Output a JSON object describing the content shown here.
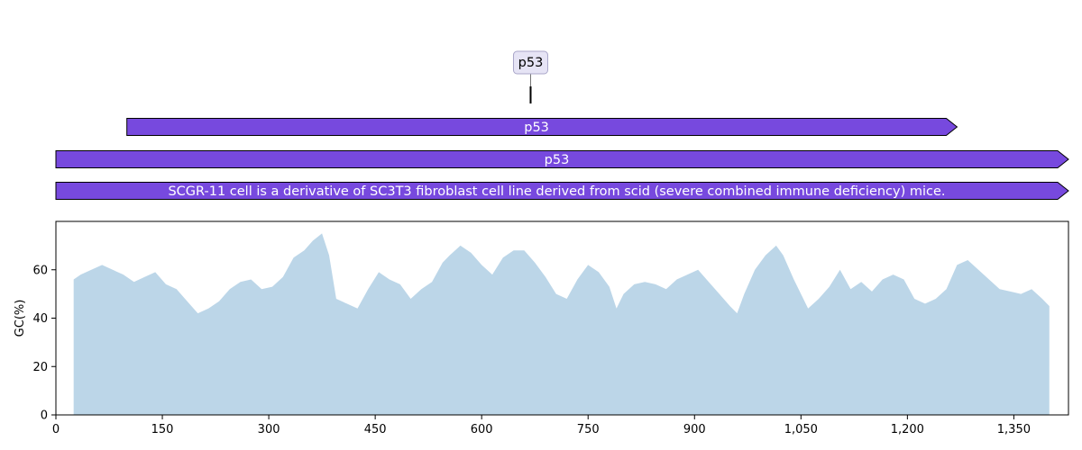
{
  "chart_data": {
    "type": "area",
    "feature_map": {
      "sequence_length": 1427,
      "features": [
        {
          "label": "p53",
          "start": 100,
          "end": 1270,
          "strand": 1,
          "color": "#7749de"
        },
        {
          "label": "p53",
          "start": 0,
          "end": 1427,
          "strand": 1,
          "color": "#7749de"
        },
        {
          "label": "SCGR-11 cell is a derivative of SC3T3 fibroblast cell line derived from scid (severe combined immune deficiency) mice.",
          "start": 0,
          "end": 1427,
          "strand": 1,
          "color": "#7749de"
        }
      ],
      "callouts": [
        {
          "label": "p53",
          "position": 669
        }
      ]
    },
    "gc_plot": {
      "ylabel": "GC(%)",
      "xlabel": "",
      "xlim": [
        0,
        1427
      ],
      "ylim": [
        0,
        80
      ],
      "fill_color": "#bcd6e8",
      "x_ticks": [
        0,
        150,
        300,
        450,
        600,
        750,
        900,
        1050,
        1200,
        1350
      ],
      "x_tick_labels": [
        "0",
        "150",
        "300",
        "450",
        "600",
        "750",
        "900",
        "1,050",
        "1,200",
        "1,350"
      ],
      "y_ticks": [
        0,
        20,
        40,
        60
      ],
      "y_tick_labels": [
        "0",
        "20",
        "40",
        "60"
      ],
      "x": [
        25,
        35,
        50,
        65,
        80,
        95,
        110,
        125,
        140,
        155,
        170,
        185,
        200,
        215,
        230,
        245,
        260,
        275,
        290,
        305,
        320,
        335,
        350,
        362,
        375,
        385,
        395,
        410,
        425,
        440,
        455,
        470,
        485,
        500,
        515,
        530,
        545,
        555,
        570,
        585,
        600,
        615,
        630,
        645,
        660,
        675,
        690,
        705,
        720,
        735,
        750,
        765,
        780,
        790,
        800,
        815,
        830,
        845,
        860,
        875,
        890,
        905,
        920,
        935,
        950,
        960,
        970,
        985,
        1000,
        1015,
        1025,
        1040,
        1050,
        1060,
        1075,
        1090,
        1105,
        1120,
        1135,
        1150,
        1165,
        1180,
        1195,
        1210,
        1225,
        1240,
        1255,
        1270,
        1285,
        1300,
        1315,
        1330,
        1345,
        1360,
        1375,
        1390,
        1400
      ],
      "y": [
        56,
        58,
        60,
        62,
        60,
        58,
        55,
        57,
        59,
        54,
        52,
        47,
        42,
        44,
        47,
        52,
        55,
        56,
        52,
        53,
        57,
        65,
        68,
        72,
        75,
        66,
        48,
        46,
        44,
        52,
        59,
        56,
        54,
        48,
        52,
        55,
        63,
        66,
        70,
        67,
        62,
        58,
        65,
        68,
        68,
        63,
        57,
        50,
        48,
        56,
        62,
        59,
        53,
        44,
        50,
        54,
        55,
        54,
        52,
        56,
        58,
        60,
        55,
        50,
        45,
        42,
        50,
        60,
        66,
        70,
        66,
        56,
        50,
        44,
        48,
        53,
        60,
        52,
        55,
        51,
        56,
        58,
        56,
        48,
        46,
        48,
        52,
        62,
        64,
        60,
        56,
        52,
        51,
        50,
        52,
        48,
        45
      ]
    }
  }
}
